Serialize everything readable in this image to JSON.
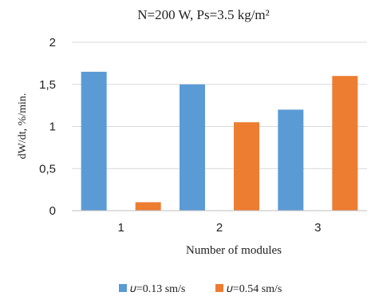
{
  "chart_data": {
    "type": "bar",
    "title": "N=200 W, Ps=3.5 kg/m²",
    "xlabel": "Number of modules",
    "ylabel": "dW/dt, %/min.",
    "categories": [
      "1",
      "2",
      "3"
    ],
    "ylim": [
      0,
      2
    ],
    "yticks": [
      "0",
      "0,5",
      "1",
      "1,5",
      "2"
    ],
    "grid": true,
    "legend_position": "bottom",
    "series": [
      {
        "name": "𝜐=0.13 sm/s",
        "color": "#5b9bd5",
        "values": [
          1.65,
          1.5,
          1.2
        ]
      },
      {
        "name": "𝜐=0.54 sm/s",
        "color": "#ed7d31",
        "values": [
          0.1,
          1.05,
          1.6
        ]
      }
    ]
  }
}
